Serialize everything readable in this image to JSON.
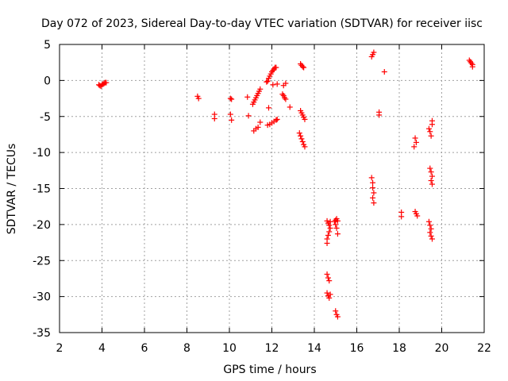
{
  "chart_data": {
    "type": "scatter",
    "title": "Day 072 of 2023, Sidereal Day-to-day VTEC variation (SDTVAR) for receiver iisc",
    "xlabel": "GPS time / hours",
    "ylabel": "SDTVAR / TECUs",
    "xlim": [
      2,
      22
    ],
    "ylim": [
      -35,
      5
    ],
    "xticks": [
      2,
      4,
      6,
      8,
      10,
      12,
      14,
      16,
      18,
      20,
      22
    ],
    "yticks": [
      -35,
      -30,
      -25,
      -20,
      -15,
      -10,
      -5,
      0,
      5
    ],
    "grid": true,
    "marker": "+",
    "series_color": "#ff0000",
    "series": [
      {
        "name": "SDTVAR",
        "points": [
          [
            3.85,
            -0.6
          ],
          [
            3.9,
            -0.7
          ],
          [
            3.95,
            -0.8
          ],
          [
            4.0,
            -0.6
          ],
          [
            4.05,
            -0.5
          ],
          [
            4.1,
            -0.4
          ],
          [
            4.15,
            -0.3
          ],
          [
            4.2,
            -0.3
          ],
          [
            8.5,
            -2.2
          ],
          [
            8.55,
            -2.5
          ],
          [
            9.3,
            -4.7
          ],
          [
            9.3,
            -5.3
          ],
          [
            10.05,
            -2.5
          ],
          [
            10.1,
            -2.6
          ],
          [
            10.05,
            -4.7
          ],
          [
            10.1,
            -5.5
          ],
          [
            10.85,
            -2.3
          ],
          [
            10.9,
            -4.9
          ],
          [
            11.15,
            -7.0
          ],
          [
            11.25,
            -6.7
          ],
          [
            11.35,
            -6.5
          ],
          [
            11.45,
            -5.8
          ],
          [
            11.1,
            -3.3
          ],
          [
            11.15,
            -3.0
          ],
          [
            11.2,
            -2.7
          ],
          [
            11.25,
            -2.4
          ],
          [
            11.3,
            -2.1
          ],
          [
            11.35,
            -1.8
          ],
          [
            11.4,
            -1.5
          ],
          [
            11.45,
            -1.2
          ],
          [
            11.75,
            -0.2
          ],
          [
            11.8,
            -0.1
          ],
          [
            11.85,
            0.3
          ],
          [
            11.9,
            0.6
          ],
          [
            11.95,
            0.9
          ],
          [
            12.0,
            1.2
          ],
          [
            12.05,
            1.4
          ],
          [
            12.1,
            1.6
          ],
          [
            12.15,
            1.8
          ],
          [
            12.2,
            1.8
          ],
          [
            11.85,
            -3.8
          ],
          [
            12.05,
            -0.6
          ],
          [
            12.25,
            -0.5
          ],
          [
            11.8,
            -6.2
          ],
          [
            11.9,
            -6.1
          ],
          [
            12.0,
            -5.9
          ],
          [
            12.1,
            -5.7
          ],
          [
            12.2,
            -5.5
          ],
          [
            12.25,
            -5.4
          ],
          [
            12.55,
            -0.7
          ],
          [
            12.65,
            -0.4
          ],
          [
            12.5,
            -1.9
          ],
          [
            12.55,
            -2.1
          ],
          [
            12.6,
            -2.4
          ],
          [
            12.65,
            -2.6
          ],
          [
            12.85,
            -3.7
          ],
          [
            13.35,
            2.3
          ],
          [
            13.4,
            2.1
          ],
          [
            13.45,
            1.9
          ],
          [
            13.5,
            1.8
          ],
          [
            13.35,
            -4.2
          ],
          [
            13.4,
            -4.5
          ],
          [
            13.45,
            -4.8
          ],
          [
            13.5,
            -5.1
          ],
          [
            13.55,
            -5.4
          ],
          [
            13.3,
            -7.3
          ],
          [
            13.35,
            -7.7
          ],
          [
            13.4,
            -8.1
          ],
          [
            13.45,
            -8.5
          ],
          [
            13.5,
            -8.9
          ],
          [
            13.55,
            -9.2
          ],
          [
            14.6,
            -19.5
          ],
          [
            14.65,
            -19.8
          ],
          [
            14.7,
            -20.1
          ],
          [
            14.75,
            -19.6
          ],
          [
            14.7,
            -21.0
          ],
          [
            14.65,
            -21.5
          ],
          [
            14.6,
            -22.0
          ],
          [
            14.6,
            -22.6
          ],
          [
            14.75,
            -20.5
          ],
          [
            14.6,
            -26.9
          ],
          [
            14.65,
            -27.4
          ],
          [
            14.7,
            -27.8
          ],
          [
            14.6,
            -29.5
          ],
          [
            14.65,
            -29.9
          ],
          [
            14.7,
            -30.2
          ],
          [
            14.75,
            -29.7
          ],
          [
            14.95,
            -19.6
          ],
          [
            15.0,
            -19.4
          ],
          [
            15.05,
            -19.2
          ],
          [
            15.1,
            -19.5
          ],
          [
            15.0,
            -20.0
          ],
          [
            15.05,
            -20.5
          ],
          [
            15.1,
            -21.3
          ],
          [
            15.0,
            -32.0
          ],
          [
            15.05,
            -32.5
          ],
          [
            15.1,
            -32.8
          ],
          [
            16.7,
            3.3
          ],
          [
            16.75,
            3.6
          ],
          [
            16.8,
            3.9
          ],
          [
            16.7,
            -13.5
          ],
          [
            16.75,
            -14.2
          ],
          [
            16.75,
            -14.9
          ],
          [
            16.8,
            -15.6
          ],
          [
            16.75,
            -16.3
          ],
          [
            16.8,
            -17.0
          ],
          [
            17.05,
            -4.4
          ],
          [
            17.05,
            -4.8
          ],
          [
            17.3,
            1.2
          ],
          [
            18.1,
            -18.3
          ],
          [
            18.1,
            -18.9
          ],
          [
            18.75,
            -18.2
          ],
          [
            18.8,
            -18.5
          ],
          [
            18.85,
            -18.8
          ],
          [
            18.75,
            -8.0
          ],
          [
            18.8,
            -8.6
          ],
          [
            18.7,
            -9.2
          ],
          [
            19.4,
            -19.6
          ],
          [
            19.45,
            -20.1
          ],
          [
            19.5,
            -20.6
          ],
          [
            19.45,
            -21.1
          ],
          [
            19.5,
            -21.6
          ],
          [
            19.55,
            -22.0
          ],
          [
            19.45,
            -12.2
          ],
          [
            19.5,
            -12.7
          ],
          [
            19.55,
            -13.3
          ],
          [
            19.5,
            -13.9
          ],
          [
            19.55,
            -14.4
          ],
          [
            19.4,
            -6.7
          ],
          [
            19.45,
            -7.1
          ],
          [
            19.5,
            -7.7
          ],
          [
            19.55,
            -6.1
          ],
          [
            19.55,
            -5.6
          ],
          [
            21.3,
            2.8
          ],
          [
            21.35,
            2.6
          ],
          [
            21.4,
            2.4
          ],
          [
            21.45,
            2.2
          ],
          [
            21.45,
            1.9
          ]
        ]
      }
    ]
  }
}
